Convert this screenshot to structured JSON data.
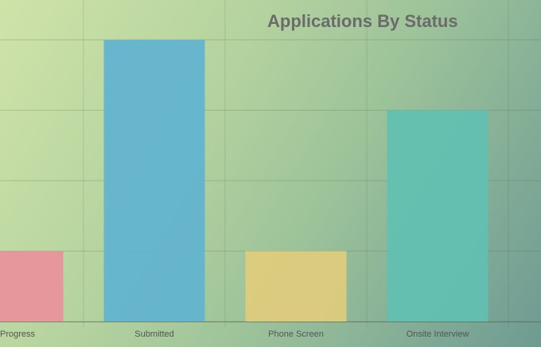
{
  "chart_data": {
    "type": "bar",
    "title": "Applications By Status",
    "categories": [
      "Progress",
      "Submitted",
      "Phone Screen",
      "Onsite Interview"
    ],
    "values": [
      1,
      4,
      1,
      3
    ],
    "ylim": [
      0,
      4
    ],
    "grid": true,
    "colors": [
      "#e8919a",
      "#5fb3d1",
      "#e0cc7c",
      "#62c0b2"
    ]
  }
}
